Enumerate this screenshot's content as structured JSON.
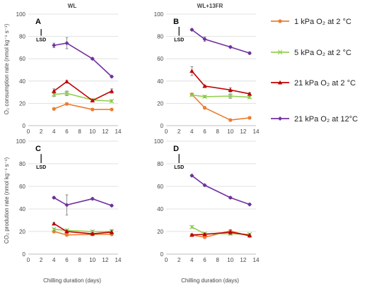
{
  "chart_data": {
    "type": "line",
    "column_titles": [
      "WL",
      "WL+13FR"
    ],
    "ylabel_top": "O₂ consumption rate (nmol kg⁻¹ s⁻¹)",
    "ylabel_bottom": "CO₂ prodution rate (nmol kg⁻¹ s⁻¹)",
    "xlabel": "Chilling duration (days)",
    "xlim": [
      0,
      14
    ],
    "xticks": [
      0,
      2,
      4,
      6,
      8,
      10,
      12,
      14
    ],
    "ylim": [
      0,
      100
    ],
    "yticks": [
      0,
      20,
      40,
      60,
      80,
      100
    ],
    "lsd_label": "LSD",
    "x": [
      4,
      6,
      10,
      13
    ],
    "legend": [
      {
        "label": "1  kPa O₂  at 2 °C",
        "color": "#ED7D31",
        "marker": "circle"
      },
      {
        "label": "5 kPa O₂   at 2 °C",
        "color": "#92D050",
        "marker": "x"
      },
      {
        "label": "21 kPa O₂  at 2 °C",
        "color": "#C00000",
        "marker": "triangle"
      },
      {
        "label": "21 kPa O₂ at 12°C",
        "color": "#7030A0",
        "marker": "diamond"
      }
    ],
    "panels": [
      {
        "label": "A",
        "lsd": 6,
        "series": [
          [
            15,
            19.5,
            14.5,
            14.5
          ],
          [
            28,
            29,
            23,
            22
          ],
          [
            31,
            39.5,
            22.5,
            31
          ],
          [
            72,
            74,
            60,
            44
          ]
        ],
        "errors": [
          [
            1,
            1,
            1,
            1
          ],
          [
            2,
            2,
            1,
            1
          ],
          [
            2,
            1,
            1,
            2
          ],
          [
            2,
            5,
            1,
            1
          ]
        ]
      },
      {
        "label": "B",
        "lsd": 8,
        "series": [
          [
            28,
            16,
            5,
            7
          ],
          [
            27.5,
            26,
            26.5,
            25.5
          ],
          [
            49,
            35.5,
            32,
            28.5
          ],
          [
            86,
            77.5,
            70.5,
            65
          ]
        ],
        "errors": [
          [
            1,
            1,
            1,
            1
          ],
          [
            1,
            1,
            2,
            1
          ],
          [
            4,
            1,
            2,
            1
          ],
          [
            1,
            2,
            1,
            1
          ]
        ]
      },
      {
        "label": "C",
        "lsd": 8,
        "series": [
          [
            20,
            17,
            17.5,
            17.5
          ],
          [
            22,
            21,
            20,
            20
          ],
          [
            27,
            20,
            18,
            19.5
          ],
          [
            50,
            43.5,
            49,
            43
          ]
        ],
        "errors": [
          [
            1,
            1,
            1,
            1
          ],
          [
            1,
            1,
            1,
            1
          ],
          [
            1,
            1,
            1,
            2
          ],
          [
            1,
            9,
            1,
            1
          ]
        ]
      },
      {
        "label": "D",
        "lsd": 8,
        "series": [
          [
            17,
            15,
            20.5,
            16
          ],
          [
            24,
            18,
            18,
            17.5
          ],
          [
            17,
            17.5,
            19.5,
            16.5
          ],
          [
            69.5,
            61,
            50,
            44
          ]
        ],
        "errors": [
          [
            1,
            1,
            1,
            1
          ],
          [
            1,
            1,
            1,
            1
          ],
          [
            1,
            1,
            2,
            1
          ],
          [
            1,
            1,
            1,
            1
          ]
        ]
      }
    ]
  }
}
